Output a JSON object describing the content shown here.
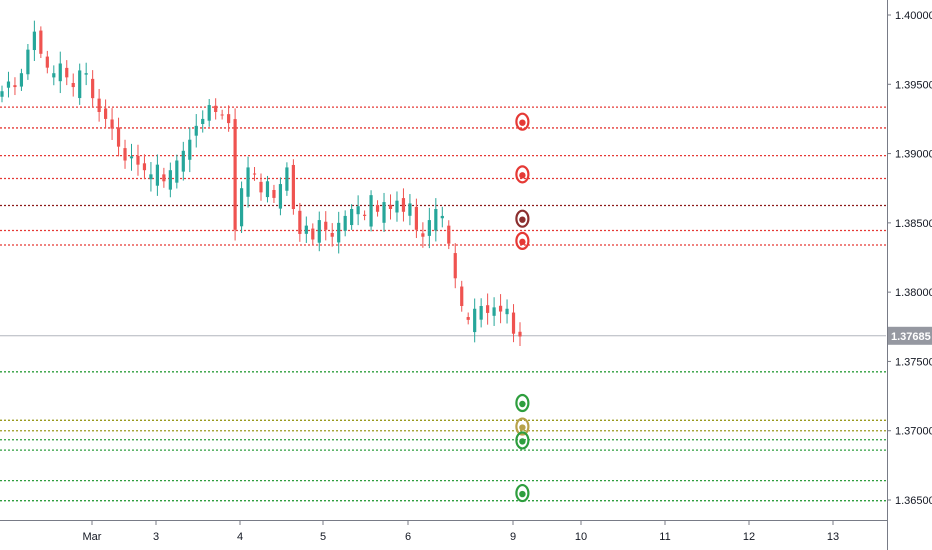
{
  "chart_data": {
    "type": "candlestick",
    "title": "",
    "xlabel": "",
    "ylabel": "",
    "ylim": [
      1.3625,
      1.4012
    ],
    "x_ticks": [
      {
        "label": "Mar",
        "day": 1
      },
      {
        "label": "3",
        "day": 3
      },
      {
        "label": "4",
        "day": 4
      },
      {
        "label": "5",
        "day": 5
      },
      {
        "label": "6",
        "day": 6
      },
      {
        "label": "9",
        "day": 9
      },
      {
        "label": "10",
        "day": 10
      },
      {
        "label": "11",
        "day": 11
      },
      {
        "label": "12",
        "day": 12
      },
      {
        "label": "13",
        "day": 13
      }
    ],
    "y_ticks": [
      "1.40000",
      "1.39500",
      "1.39000",
      "1.38500",
      "1.38000",
      "1.37500",
      "1.37000",
      "1.36500"
    ],
    "current_price": "1.37685",
    "price_path": [
      1.3945,
      1.3952,
      1.3948,
      1.3958,
      1.3975,
      1.3988,
      1.3972,
      1.3962,
      1.3958,
      1.3965,
      1.3955,
      1.3948,
      1.396,
      1.3958,
      1.394,
      1.393,
      1.3925,
      1.3918,
      1.3905,
      1.3895,
      1.3898,
      1.3892,
      1.3888,
      1.3885,
      1.3892,
      1.388,
      1.3888,
      1.3895,
      1.3902,
      1.391,
      1.392,
      1.3925,
      1.3935,
      1.393,
      1.3928,
      1.3922,
      1.3845,
      1.3875,
      1.389,
      1.3885,
      1.3872,
      1.388,
      1.3868,
      1.3878,
      1.389,
      1.386,
      1.3842,
      1.3848,
      1.3838,
      1.3852,
      1.3845,
      1.384,
      1.385,
      1.3855,
      1.386,
      1.3862,
      1.3855,
      1.387,
      1.3858,
      1.3865,
      1.386,
      1.3866,
      1.3858,
      1.3864,
      1.3845,
      1.384,
      1.3852,
      1.386,
      1.3855,
      1.3835,
      1.381,
      1.379,
      1.378,
      1.3788,
      1.379,
      1.3785,
      1.3789,
      1.3786,
      1.3788,
      1.377,
      1.3768
    ],
    "resistance_levels": [
      1.39335,
      1.39185,
      1.38985,
      1.3882,
      1.38625,
      1.38445,
      1.3834
    ],
    "support_levels": [
      1.37425,
      1.37075,
      1.37,
      1.36935,
      1.3686,
      1.3664,
      1.36495
    ],
    "markers": [
      {
        "day": 9.05,
        "value": 1.3923,
        "color": "#e53935"
      },
      {
        "day": 9.05,
        "value": 1.3885,
        "color": "#e53935"
      },
      {
        "day": 9.05,
        "value": 1.3853,
        "color": "#8b2f2f"
      },
      {
        "day": 9.05,
        "value": 1.3837,
        "color": "#e53935"
      },
      {
        "day": 9.05,
        "value": 1.372,
        "color": "#2e9e3e"
      },
      {
        "day": 9.05,
        "value": 1.3703,
        "color": "#b7a24a"
      },
      {
        "day": 9.05,
        "value": 1.3693,
        "color": "#2e9e3e"
      },
      {
        "day": 9.05,
        "value": 1.3655,
        "color": "#2e9e3e"
      }
    ],
    "colors": {
      "up": "#26a69a",
      "down": "#ef5350",
      "resistance": "#e53935",
      "resistance_dark": "#8b1a1a",
      "support": "#2e9e3e",
      "support_olive": "#9a9a1e",
      "axis_text": "#131722",
      "price_badge": "#9598a1"
    },
    "grid": false,
    "legend": "none"
  }
}
